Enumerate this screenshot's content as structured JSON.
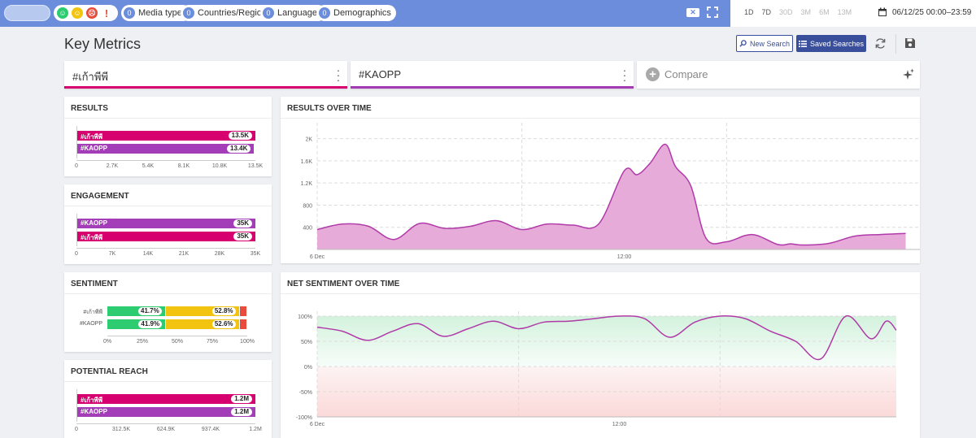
{
  "filters": {
    "chips": [
      {
        "count": "0",
        "label": "Media types"
      },
      {
        "count": "0",
        "label": "Countries/Regions"
      },
      {
        "count": "0",
        "label": "Languages"
      },
      {
        "count": "0",
        "label": "Demographics"
      }
    ],
    "sentiment_icons": [
      "positive-face-icon",
      "neutral-face-icon",
      "negative-face-icon",
      "exclamation-icon"
    ]
  },
  "time_ranges": [
    "1D",
    "7D",
    "30D",
    "3M",
    "6M",
    "13M"
  ],
  "date_range": "06/12/25 00:00–23:59",
  "header": {
    "title": "Key Metrics",
    "new_search": "New Search",
    "saved_searches": "Saved Searches"
  },
  "queries": [
    {
      "label": "#เก้าพีพี",
      "color": "#d6006e"
    },
    {
      "label": "#KAOPP",
      "color": "#a23bb4"
    }
  ],
  "compare_label": "Compare",
  "colors": {
    "q1": "#d6006e",
    "q2": "#a43db8",
    "positive": "#2ecc71",
    "neutral": "#f2c40f",
    "negative": "#e74c3c",
    "area": "#e6a6d8",
    "area_line": "#b03aa8"
  },
  "results": {
    "title": "RESULTS",
    "bars": [
      {
        "label": "#เก้าพีพี",
        "value_label": "13.5K",
        "value": 13500,
        "series": "q1"
      },
      {
        "label": "#KAOPP",
        "value_label": "13.4K",
        "value": 13400,
        "series": "q2"
      }
    ],
    "max": 13500,
    "ticks": [
      "0",
      "2.7K",
      "5.4K",
      "8.1K",
      "10.8K",
      "13.5K"
    ]
  },
  "engagement": {
    "title": "ENGAGEMENT",
    "bars": [
      {
        "label": "#KAOPP",
        "value_label": "35K",
        "value": 35000,
        "series": "q2"
      },
      {
        "label": "#เก้าพีพี",
        "value_label": "35K",
        "value": 35000,
        "series": "q1"
      }
    ],
    "max": 35000,
    "ticks": [
      "0",
      "7K",
      "14K",
      "21K",
      "28K",
      "35K"
    ]
  },
  "sentiment": {
    "title": "SENTIMENT",
    "rows": [
      {
        "label": "#เก้าพีพี",
        "positive": 41.7,
        "neutral": 52.8,
        "negative": 5.5,
        "positive_label": "41.7%",
        "neutral_label": "52.8%"
      },
      {
        "label": "#KAOPP",
        "positive": 41.9,
        "neutral": 52.6,
        "negative": 5.5,
        "positive_label": "41.9%",
        "neutral_label": "52.6%"
      }
    ],
    "ticks": [
      "0%",
      "25%",
      "50%",
      "75%",
      "100%"
    ]
  },
  "reach": {
    "title": "POTENTIAL REACH",
    "bars": [
      {
        "label": "#เก้าพีพี",
        "value_label": "1.2M",
        "value": 1250000,
        "series": "q1"
      },
      {
        "label": "#KAOPP",
        "value_label": "1.2M",
        "value": 1250000,
        "series": "q2"
      }
    ],
    "max": 1250000,
    "ticks": [
      "0",
      "312.5K",
      "624.9K",
      "937.4K",
      "1.2M"
    ]
  },
  "chart_data": [
    {
      "type": "area",
      "title": "RESULTS OVER TIME",
      "ylim": [
        0,
        2200
      ],
      "yticks": [
        400,
        800,
        1200,
        1600,
        2000
      ],
      "ytick_labels": [
        "400",
        "800",
        "1.2K",
        "1.6K",
        "2K"
      ],
      "xlabels": [
        {
          "x": 0,
          "label": "6 Dec"
        },
        {
          "x": 12,
          "label": "12:00"
        }
      ],
      "xmax": 24,
      "series": [
        {
          "name": "Results",
          "x": [
            0,
            1,
            2,
            3,
            4,
            5,
            6,
            7,
            8,
            9,
            10,
            11,
            12,
            12.5,
            13,
            13.6,
            14,
            14.6,
            15.2,
            16,
            17,
            18,
            18.5,
            19,
            20,
            21,
            22,
            23
          ],
          "values": [
            360,
            460,
            420,
            180,
            470,
            380,
            420,
            520,
            360,
            460,
            440,
            460,
            1420,
            1350,
            1550,
            1900,
            1500,
            1150,
            200,
            140,
            270,
            90,
            100,
            80,
            110,
            240,
            270,
            290
          ]
        }
      ]
    },
    {
      "type": "area",
      "title": "NET SENTIMENT OVER TIME",
      "ylim": [
        -100,
        100
      ],
      "yticks": [
        -100,
        -50,
        0,
        50,
        100
      ],
      "ytick_labels": [
        "-100%",
        "-50%",
        "0%",
        "50%",
        "100%"
      ],
      "xlabels": [
        {
          "x": 0,
          "label": "6 Dec"
        },
        {
          "x": 12,
          "label": "12:00"
        }
      ],
      "xmax": 23,
      "series": [
        {
          "name": "Net sentiment",
          "x": [
            0,
            1,
            2,
            3,
            4,
            5,
            6,
            7,
            8,
            9,
            10,
            11,
            12,
            13,
            14,
            15,
            16,
            17,
            18,
            19,
            20,
            21,
            22,
            22.6,
            23
          ],
          "values": [
            78,
            70,
            52,
            70,
            85,
            60,
            75,
            90,
            75,
            88,
            90,
            95,
            100,
            95,
            58,
            88,
            100,
            95,
            70,
            50,
            15,
            100,
            55,
            90,
            72
          ]
        }
      ]
    }
  ]
}
